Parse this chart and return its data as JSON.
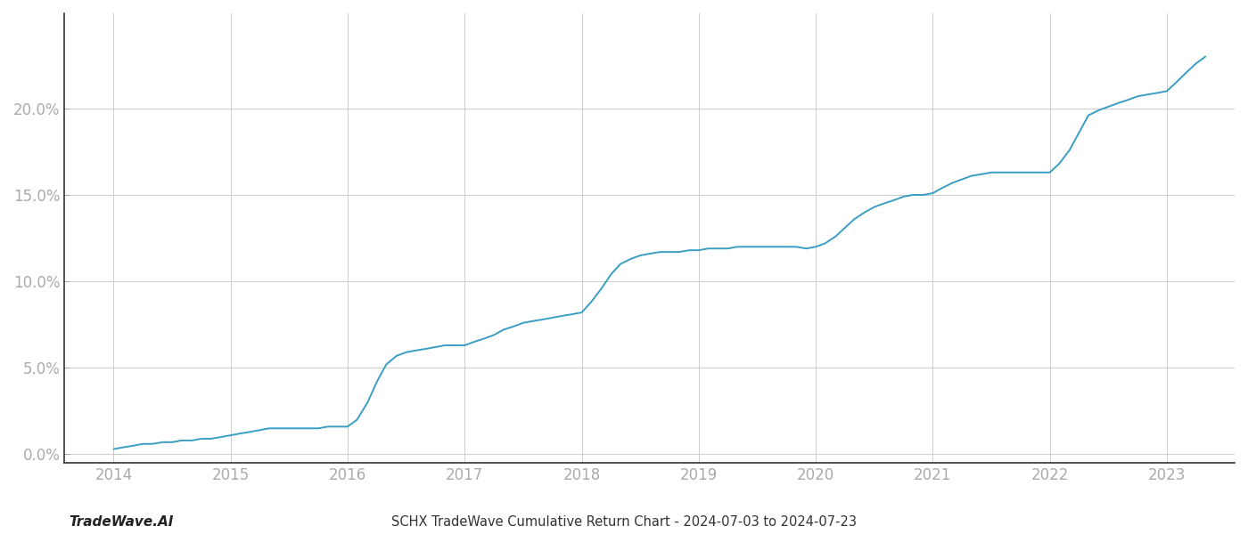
{
  "title": "SCHX TradeWave Cumulative Return Chart - 2024-07-03 to 2024-07-23",
  "watermark": "TradeWave.AI",
  "line_color": "#3a9ec2",
  "background_color": "#ffffff",
  "grid_color": "#cccccc",
  "x_years": [
    2014,
    2015,
    2016,
    2017,
    2018,
    2019,
    2020,
    2021,
    2022,
    2023
  ],
  "data_x": [
    2014.0,
    2014.08,
    2014.17,
    2014.25,
    2014.33,
    2014.42,
    2014.5,
    2014.58,
    2014.67,
    2014.75,
    2014.83,
    2014.92,
    2015.0,
    2015.08,
    2015.17,
    2015.25,
    2015.33,
    2015.42,
    2015.5,
    2015.58,
    2015.67,
    2015.75,
    2015.83,
    2015.92,
    2016.0,
    2016.08,
    2016.17,
    2016.25,
    2016.33,
    2016.42,
    2016.5,
    2016.58,
    2016.67,
    2016.75,
    2016.83,
    2016.92,
    2017.0,
    2017.08,
    2017.17,
    2017.25,
    2017.33,
    2017.42,
    2017.5,
    2017.58,
    2017.67,
    2017.75,
    2017.83,
    2017.92,
    2018.0,
    2018.08,
    2018.17,
    2018.25,
    2018.33,
    2018.42,
    2018.5,
    2018.58,
    2018.67,
    2018.75,
    2018.83,
    2018.92,
    2019.0,
    2019.08,
    2019.17,
    2019.25,
    2019.33,
    2019.42,
    2019.5,
    2019.58,
    2019.67,
    2019.75,
    2019.83,
    2019.92,
    2020.0,
    2020.08,
    2020.17,
    2020.25,
    2020.33,
    2020.42,
    2020.5,
    2020.58,
    2020.67,
    2020.75,
    2020.83,
    2020.92,
    2021.0,
    2021.08,
    2021.17,
    2021.25,
    2021.33,
    2021.42,
    2021.5,
    2021.58,
    2021.67,
    2021.75,
    2021.83,
    2021.92,
    2022.0,
    2022.08,
    2022.17,
    2022.25,
    2022.33,
    2022.42,
    2022.5,
    2022.58,
    2022.67,
    2022.75,
    2022.83,
    2022.92,
    2023.0,
    2023.08,
    2023.17,
    2023.25,
    2023.33
  ],
  "data_y": [
    0.003,
    0.004,
    0.005,
    0.006,
    0.006,
    0.007,
    0.007,
    0.008,
    0.008,
    0.009,
    0.009,
    0.01,
    0.011,
    0.012,
    0.013,
    0.014,
    0.015,
    0.015,
    0.015,
    0.015,
    0.015,
    0.015,
    0.016,
    0.016,
    0.016,
    0.02,
    0.03,
    0.042,
    0.052,
    0.057,
    0.059,
    0.06,
    0.061,
    0.062,
    0.063,
    0.063,
    0.063,
    0.065,
    0.067,
    0.069,
    0.072,
    0.074,
    0.076,
    0.077,
    0.078,
    0.079,
    0.08,
    0.081,
    0.082,
    0.088,
    0.096,
    0.104,
    0.11,
    0.113,
    0.115,
    0.116,
    0.117,
    0.117,
    0.117,
    0.118,
    0.118,
    0.119,
    0.119,
    0.119,
    0.12,
    0.12,
    0.12,
    0.12,
    0.12,
    0.12,
    0.12,
    0.119,
    0.12,
    0.122,
    0.126,
    0.131,
    0.136,
    0.14,
    0.143,
    0.145,
    0.147,
    0.149,
    0.15,
    0.15,
    0.151,
    0.154,
    0.157,
    0.159,
    0.161,
    0.162,
    0.163,
    0.163,
    0.163,
    0.163,
    0.163,
    0.163,
    0.163,
    0.168,
    0.176,
    0.186,
    0.196,
    0.199,
    0.201,
    0.203,
    0.205,
    0.207,
    0.208,
    0.209,
    0.21,
    0.215,
    0.221,
    0.226,
    0.23
  ],
  "yticks": [
    0.0,
    0.05,
    0.1,
    0.15,
    0.2
  ],
  "ytick_labels": [
    "0.0%",
    "5.0%",
    "10.0%",
    "15.0%",
    "20.0%"
  ],
  "ylim": [
    -0.005,
    0.255
  ],
  "xlim": [
    2013.58,
    2023.58
  ],
  "line_width": 1.4,
  "title_fontsize": 10.5,
  "watermark_fontsize": 11,
  "tick_fontsize": 12,
  "tick_color": "#aaaaaa",
  "spine_color": "#333333"
}
